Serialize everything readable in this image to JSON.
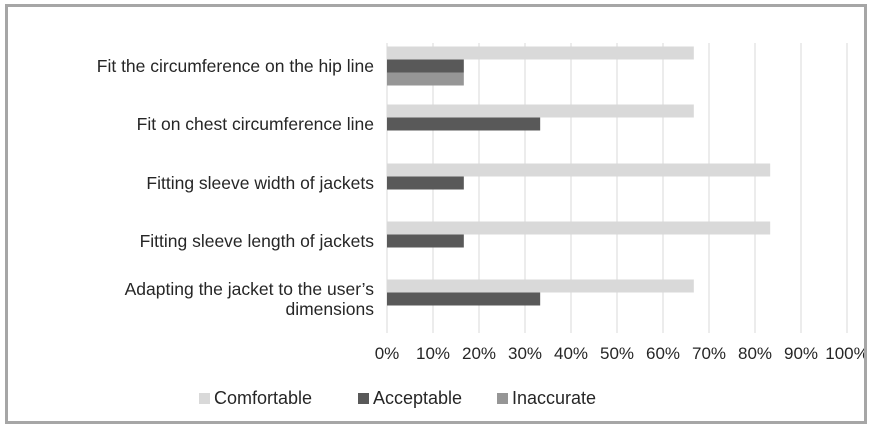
{
  "chart_data": {
    "type": "bar",
    "orientation": "horizontal",
    "categories": [
      [
        "Fit the circumference on the hip line"
      ],
      [
        "Fit on chest circumference line"
      ],
      [
        "Fitting sleeve width of jackets"
      ],
      [
        "Fitting sleeve length of jackets"
      ],
      [
        "Adapting the jacket to the user’s",
        "dimensions"
      ]
    ],
    "series": [
      {
        "name": "Comfortable",
        "color": "#d9d9d9",
        "values": [
          66.7,
          66.7,
          83.3,
          83.3,
          66.7
        ]
      },
      {
        "name": "Acceptable",
        "color": "#595959",
        "values": [
          16.7,
          33.3,
          16.7,
          16.7,
          33.3
        ]
      },
      {
        "name": "Inaccurate",
        "color": "#969696",
        "values": [
          16.7,
          0,
          0,
          0,
          0
        ]
      }
    ],
    "xlim": [
      0,
      100
    ],
    "xticks": [
      "0%",
      "10%",
      "20%",
      "30%",
      "40%",
      "50%",
      "60%",
      "70%",
      "80%",
      "90%",
      "100%"
    ],
    "grid": "vertical",
    "legend": "bottom"
  }
}
